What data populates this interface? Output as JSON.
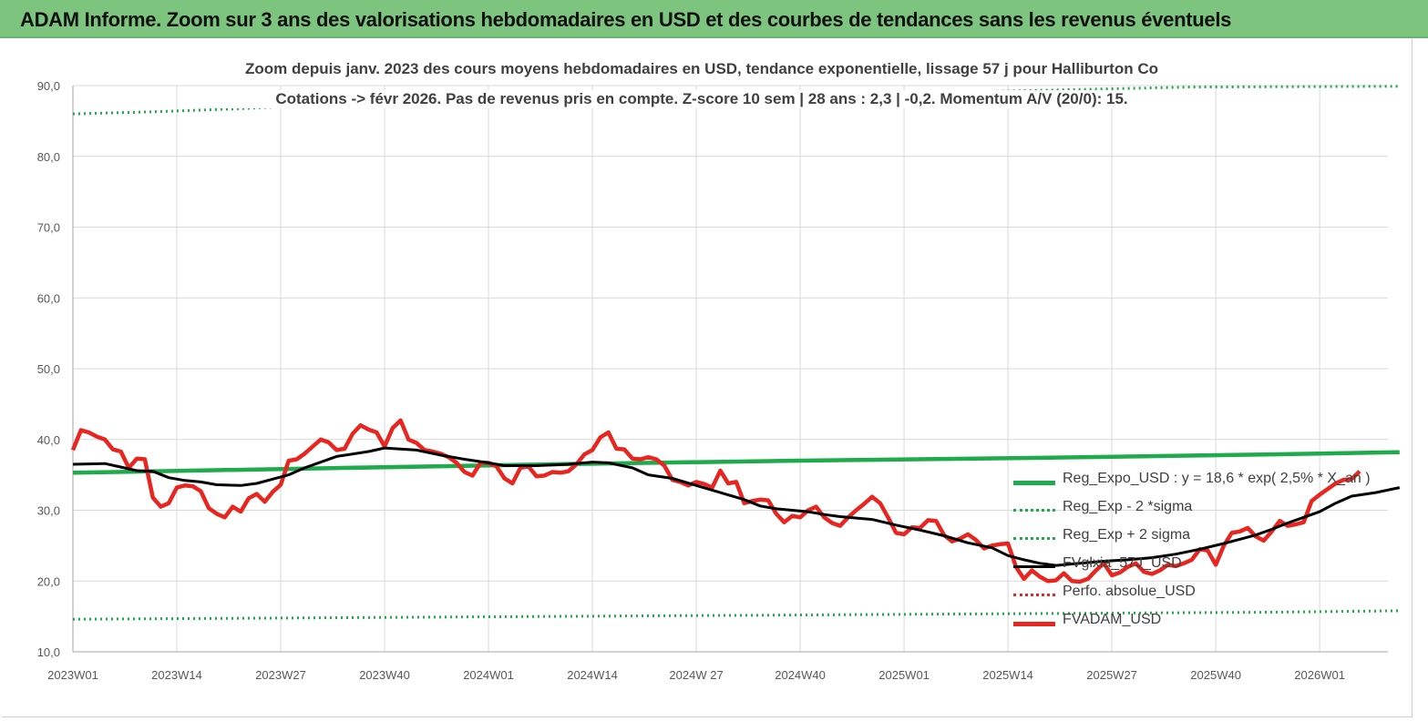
{
  "header": {
    "title": "ADAM Informe. Zoom sur 3 ans des valorisations hebdomadaires en USD et des courbes de tendances sans les revenus éventuels"
  },
  "chart_data": {
    "type": "line",
    "title": "Zoom depuis janv. 2023 des cours moyens hebdomadaires en USD, tendance exponentielle, lissage 57 j pour Halliburton Co",
    "subtitle": "Cotations -> févr 2026.  Pas de revenus pris en compte. Z-score 10 sem  | 28 ans : 2,3 | -0,2. Momentum A/V (20/0): 15.",
    "xlabel": "",
    "ylabel": "",
    "ylim": [
      10,
      90
    ],
    "yticks": [
      "10,0",
      "20,0",
      "30,0",
      "40,0",
      "50,0",
      "60,0",
      "70,0",
      "80,0",
      "90,0"
    ],
    "x_tick_labels": [
      "2023W01",
      "2023W14",
      "2023W27",
      "2023W40",
      "2024W01",
      "2024W14",
      "2024W 27",
      "2024W40",
      "2025W01",
      "2025W14",
      "2025W27",
      "2025W40",
      "2026W01"
    ],
    "x_tick_weeks": [
      0,
      13,
      26,
      39,
      52,
      65,
      78,
      91,
      104,
      117,
      130,
      143,
      156
    ],
    "week_count": 166,
    "grid": true,
    "legend_position": "right",
    "series": [
      {
        "name": "Reg_Expo_USD : y = 18,6 * exp( 2,5% *  X_an )",
        "color": "#1faa4b",
        "style": "solid-thick",
        "points": [
          [
            0,
            35.3
          ],
          [
            30,
            35.9
          ],
          [
            60,
            36.5
          ],
          [
            90,
            37.0
          ],
          [
            120,
            37.4
          ],
          [
            150,
            37.9
          ],
          [
            166,
            38.2
          ]
        ]
      },
      {
        "name": "Reg_Exp - 2 *sigma",
        "color": "#1faa4b",
        "style": "dotted",
        "points": [
          [
            0,
            14.6
          ],
          [
            30,
            14.8
          ],
          [
            60,
            15.0
          ],
          [
            90,
            15.2
          ],
          [
            120,
            15.4
          ],
          [
            150,
            15.6
          ],
          [
            166,
            15.8
          ]
        ]
      },
      {
        "name": "Reg_Exp + 2 sigma",
        "color": "#1faa4b",
        "style": "dotted",
        "points": [
          [
            0,
            86.0
          ],
          [
            10,
            86.3
          ],
          [
            20,
            86.7
          ],
          [
            26,
            87.0
          ],
          [
            140,
            89.8
          ],
          [
            166,
            89.9
          ]
        ]
      },
      {
        "name": "FVglxia_57J_USD",
        "color": "#000000",
        "style": "solid",
        "points": [
          [
            0,
            36.5
          ],
          [
            4,
            36.6
          ],
          [
            8,
            35.6
          ],
          [
            10,
            35.5
          ],
          [
            12,
            34.6
          ],
          [
            14,
            34.2
          ],
          [
            16,
            34.0
          ],
          [
            18,
            33.6
          ],
          [
            21,
            33.5
          ],
          [
            23,
            33.8
          ],
          [
            25,
            34.4
          ],
          [
            27,
            35.0
          ],
          [
            29,
            36.0
          ],
          [
            33,
            37.6
          ],
          [
            37,
            38.3
          ],
          [
            39,
            38.8
          ],
          [
            43,
            38.5
          ],
          [
            46,
            37.8
          ],
          [
            49,
            37.2
          ],
          [
            52,
            36.7
          ],
          [
            54,
            36.3
          ],
          [
            58,
            36.3
          ],
          [
            62,
            36.5
          ],
          [
            65,
            36.8
          ],
          [
            67,
            36.7
          ],
          [
            70,
            36.0
          ],
          [
            72,
            35.0
          ],
          [
            75,
            34.5
          ],
          [
            78,
            33.5
          ],
          [
            81,
            32.5
          ],
          [
            84,
            31.5
          ],
          [
            86,
            30.6
          ],
          [
            88,
            30.2
          ],
          [
            92,
            29.8
          ],
          [
            94,
            29.4
          ],
          [
            96,
            29.1
          ],
          [
            100,
            28.7
          ],
          [
            103,
            27.9
          ],
          [
            106,
            27.2
          ],
          [
            109,
            26.4
          ],
          [
            112,
            25.4
          ],
          [
            115,
            24.7
          ],
          [
            117,
            23.6
          ],
          [
            119,
            23.0
          ],
          [
            121,
            22.5
          ],
          [
            123,
            22.2
          ],
          [
            126,
            22.5
          ],
          [
            129,
            22.8
          ],
          [
            132,
            23.0
          ],
          [
            135,
            23.3
          ],
          [
            138,
            23.8
          ],
          [
            141,
            24.5
          ],
          [
            144,
            25.3
          ],
          [
            146,
            25.9
          ],
          [
            148,
            26.5
          ],
          [
            150,
            27.3
          ],
          [
            152,
            28.2
          ],
          [
            154,
            29.0
          ],
          [
            156,
            29.8
          ],
          [
            158,
            31.0
          ],
          [
            160,
            32.0
          ],
          [
            163,
            32.5
          ],
          [
            166,
            33.2
          ]
        ]
      },
      {
        "name": "Perfo. absolue_USD",
        "color": "#e8251f",
        "style": "dotted",
        "points": []
      },
      {
        "name": "FVADAM_USD",
        "color": "#e8251f",
        "style": "solid-thick",
        "points": [
          [
            0,
            38.5
          ],
          [
            1,
            41.3
          ],
          [
            2,
            41.0
          ],
          [
            3,
            40.4
          ],
          [
            4,
            40.0
          ],
          [
            5,
            38.6
          ],
          [
            6,
            38.3
          ],
          [
            7,
            36.0
          ],
          [
            8,
            37.3
          ],
          [
            9,
            37.2
          ],
          [
            10,
            31.8
          ],
          [
            11,
            30.5
          ],
          [
            12,
            31.0
          ],
          [
            13,
            33.2
          ],
          [
            14,
            33.5
          ],
          [
            15,
            33.4
          ],
          [
            16,
            32.7
          ],
          [
            17,
            30.3
          ],
          [
            18,
            29.5
          ],
          [
            19,
            29.0
          ],
          [
            20,
            30.5
          ],
          [
            21,
            29.8
          ],
          [
            22,
            31.7
          ],
          [
            23,
            32.3
          ],
          [
            24,
            31.2
          ],
          [
            25,
            32.6
          ],
          [
            26,
            33.6
          ],
          [
            27,
            37.0
          ],
          [
            28,
            37.2
          ],
          [
            29,
            38.0
          ],
          [
            30,
            39.0
          ],
          [
            31,
            40.0
          ],
          [
            32,
            39.6
          ],
          [
            33,
            38.5
          ],
          [
            34,
            38.7
          ],
          [
            35,
            40.8
          ],
          [
            36,
            42.0
          ],
          [
            37,
            41.4
          ],
          [
            38,
            41.0
          ],
          [
            39,
            39.0
          ],
          [
            40,
            41.6
          ],
          [
            41,
            42.7
          ],
          [
            42,
            40.0
          ],
          [
            43,
            39.5
          ],
          [
            44,
            38.5
          ],
          [
            45,
            38.3
          ],
          [
            46,
            38.0
          ],
          [
            47,
            37.5
          ],
          [
            48,
            36.7
          ],
          [
            49,
            35.4
          ],
          [
            50,
            34.9
          ],
          [
            51,
            36.7
          ],
          [
            52,
            36.7
          ],
          [
            53,
            36.2
          ],
          [
            54,
            34.5
          ],
          [
            55,
            33.8
          ],
          [
            56,
            36.0
          ],
          [
            57,
            36.2
          ],
          [
            58,
            34.8
          ],
          [
            59,
            34.9
          ],
          [
            60,
            35.4
          ],
          [
            61,
            35.3
          ],
          [
            62,
            35.5
          ],
          [
            63,
            36.5
          ],
          [
            64,
            37.9
          ],
          [
            65,
            38.5
          ],
          [
            66,
            40.3
          ],
          [
            67,
            41.0
          ],
          [
            68,
            38.7
          ],
          [
            69,
            38.6
          ],
          [
            70,
            37.3
          ],
          [
            71,
            37.2
          ],
          [
            72,
            37.5
          ],
          [
            73,
            37.2
          ],
          [
            74,
            36.3
          ],
          [
            75,
            34.3
          ],
          [
            76,
            34.0
          ],
          [
            77,
            33.5
          ],
          [
            78,
            34.0
          ],
          [
            79,
            33.7
          ],
          [
            80,
            33.2
          ],
          [
            81,
            35.6
          ],
          [
            82,
            33.8
          ],
          [
            83,
            34.0
          ],
          [
            84,
            31.0
          ],
          [
            85,
            31.3
          ],
          [
            86,
            31.5
          ],
          [
            87,
            31.4
          ],
          [
            88,
            29.5
          ],
          [
            89,
            28.3
          ],
          [
            90,
            29.2
          ],
          [
            91,
            29.0
          ],
          [
            92,
            30.0
          ],
          [
            93,
            30.5
          ],
          [
            94,
            29.0
          ],
          [
            95,
            28.2
          ],
          [
            96,
            27.8
          ],
          [
            97,
            29.0
          ],
          [
            98,
            30.0
          ],
          [
            99,
            30.9
          ],
          [
            100,
            31.9
          ],
          [
            101,
            31.0
          ],
          [
            102,
            29.0
          ],
          [
            103,
            26.8
          ],
          [
            104,
            26.6
          ],
          [
            105,
            27.6
          ],
          [
            106,
            27.5
          ],
          [
            107,
            28.6
          ],
          [
            108,
            28.5
          ],
          [
            109,
            26.5
          ],
          [
            110,
            25.6
          ],
          [
            111,
            26.0
          ],
          [
            112,
            26.6
          ],
          [
            113,
            25.8
          ],
          [
            114,
            24.6
          ],
          [
            115,
            25.0
          ],
          [
            116,
            25.2
          ],
          [
            117,
            25.3
          ],
          [
            118,
            22.0
          ],
          [
            119,
            20.3
          ],
          [
            120,
            21.5
          ],
          [
            121,
            20.6
          ],
          [
            122,
            20.0
          ],
          [
            123,
            20.1
          ],
          [
            124,
            21.1
          ],
          [
            125,
            20.0
          ],
          [
            126,
            19.9
          ],
          [
            127,
            20.3
          ],
          [
            128,
            21.5
          ],
          [
            129,
            22.5
          ],
          [
            130,
            20.8
          ],
          [
            131,
            21.2
          ],
          [
            132,
            22.0
          ],
          [
            133,
            22.5
          ],
          [
            134,
            21.3
          ],
          [
            135,
            21.0
          ],
          [
            136,
            21.5
          ],
          [
            137,
            22.3
          ],
          [
            138,
            22.1
          ],
          [
            139,
            22.5
          ],
          [
            140,
            23.0
          ],
          [
            141,
            24.5
          ],
          [
            142,
            24.3
          ],
          [
            143,
            22.3
          ],
          [
            144,
            25.0
          ],
          [
            145,
            26.8
          ],
          [
            146,
            27.0
          ],
          [
            147,
            27.5
          ],
          [
            148,
            26.3
          ],
          [
            149,
            25.7
          ],
          [
            150,
            27.0
          ],
          [
            151,
            28.5
          ],
          [
            152,
            27.8
          ],
          [
            153,
            28.0
          ],
          [
            154,
            28.3
          ],
          [
            155,
            31.3
          ],
          [
            156,
            32.2
          ],
          [
            157,
            33.0
          ],
          [
            158,
            33.8
          ],
          [
            159,
            34.3
          ],
          [
            160,
            34.4
          ],
          [
            161,
            35.5
          ]
        ]
      }
    ]
  }
}
